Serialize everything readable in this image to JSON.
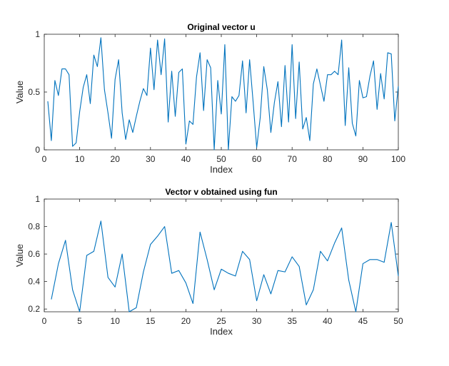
{
  "chart_data": [
    {
      "type": "line",
      "title": "Original vector u",
      "xlabel": "Index",
      "ylabel": "Value",
      "xlim": [
        0,
        100
      ],
      "ylim": [
        0,
        1
      ],
      "xticks": [
        0,
        10,
        20,
        30,
        40,
        50,
        60,
        70,
        80,
        90,
        100
      ],
      "yticks": [
        0,
        0.5,
        1
      ],
      "line_color": "#0072BD",
      "grid": false,
      "box": true,
      "series": [
        {
          "x": [
            1,
            2,
            3,
            4,
            5,
            6,
            7,
            8,
            9,
            10,
            11,
            12,
            13,
            14,
            15,
            16,
            17,
            18,
            19,
            20,
            21,
            22,
            23,
            24,
            25,
            26,
            27,
            28,
            29,
            30,
            31,
            32,
            33,
            34,
            35,
            36,
            37,
            38,
            39,
            40,
            41,
            42,
            43,
            44,
            45,
            46,
            47,
            48,
            49,
            50,
            51,
            52,
            53,
            54,
            55,
            56,
            57,
            58,
            59,
            60,
            61,
            62,
            63,
            64,
            65,
            66,
            67,
            68,
            69,
            70,
            71,
            72,
            73,
            74,
            75,
            76,
            77,
            78,
            79,
            80,
            81,
            82,
            83,
            84,
            85,
            86,
            87,
            88,
            89,
            90,
            91,
            92,
            93,
            94,
            95,
            96,
            97,
            98,
            99,
            100
          ],
          "y": [
            0.42,
            0.08,
            0.6,
            0.47,
            0.7,
            0.7,
            0.65,
            0.03,
            0.06,
            0.33,
            0.54,
            0.65,
            0.4,
            0.82,
            0.72,
            0.97,
            0.52,
            0.32,
            0.1,
            0.61,
            0.78,
            0.32,
            0.09,
            0.26,
            0.15,
            0.29,
            0.42,
            0.53,
            0.47,
            0.88,
            0.52,
            0.95,
            0.65,
            0.96,
            0.24,
            0.68,
            0.29,
            0.67,
            0.7,
            0.05,
            0.25,
            0.22,
            0.63,
            0.84,
            0.34,
            0.78,
            0.71,
            0.0,
            0.6,
            0.31,
            0.91,
            0.0,
            0.46,
            0.42,
            0.47,
            0.77,
            0.32,
            0.78,
            0.41,
            0.02,
            0.28,
            0.72,
            0.52,
            0.15,
            0.41,
            0.59,
            0.2,
            0.73,
            0.24,
            0.91,
            0.27,
            0.76,
            0.18,
            0.28,
            0.08,
            0.57,
            0.7,
            0.56,
            0.42,
            0.65,
            0.65,
            0.68,
            0.65,
            0.95,
            0.21,
            0.71,
            0.23,
            0.12,
            0.6,
            0.45,
            0.46,
            0.64,
            0.77,
            0.35,
            0.66,
            0.44,
            0.84,
            0.83,
            0.25,
            0.55
          ]
        }
      ]
    },
    {
      "type": "line",
      "title": "Vector v obtained using fun",
      "xlabel": "Index",
      "ylabel": "Value",
      "xlim": [
        0,
        50
      ],
      "ylim": [
        0.18,
        1
      ],
      "xticks": [
        0,
        5,
        10,
        15,
        20,
        25,
        30,
        35,
        40,
        45,
        50
      ],
      "yticks": [
        0.2,
        0.4,
        0.6,
        0.8,
        1
      ],
      "ytick_labels": [
        "0.2",
        "0.4",
        "0.6",
        "0.8",
        "1"
      ],
      "line_color": "#0072BD",
      "grid": false,
      "box": true,
      "series": [
        {
          "x": [
            1,
            2,
            3,
            4,
            5,
            6,
            7,
            8,
            9,
            10,
            11,
            12,
            13,
            14,
            15,
            16,
            17,
            18,
            19,
            20,
            21,
            22,
            23,
            24,
            25,
            26,
            27,
            28,
            29,
            30,
            31,
            32,
            33,
            34,
            35,
            36,
            37,
            38,
            39,
            40,
            41,
            42,
            43,
            44,
            45,
            46,
            47,
            48,
            49,
            50
          ],
          "y": [
            0.27,
            0.53,
            0.7,
            0.34,
            0.18,
            0.59,
            0.62,
            0.84,
            0.43,
            0.36,
            0.6,
            0.18,
            0.21,
            0.47,
            0.67,
            0.73,
            0.8,
            0.46,
            0.48,
            0.39,
            0.24,
            0.76,
            0.56,
            0.34,
            0.49,
            0.46,
            0.44,
            0.62,
            0.56,
            0.26,
            0.45,
            0.31,
            0.48,
            0.47,
            0.58,
            0.51,
            0.23,
            0.34,
            0.62,
            0.55,
            0.68,
            0.79,
            0.41,
            0.18,
            0.53,
            0.56,
            0.56,
            0.54,
            0.83,
            0.44
          ]
        }
      ]
    }
  ]
}
